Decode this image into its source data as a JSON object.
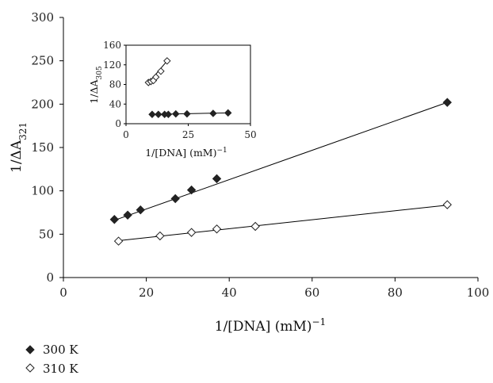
{
  "chart_data": [
    {
      "type": "scatter",
      "xlabel": "1/[DNA] (mM)",
      "xlabel_sup": "−1",
      "ylabel": "1/ΔA",
      "ylabel_sub": "321",
      "xlim": [
        0,
        100
      ],
      "ylim": [
        0,
        300
      ],
      "xticks": [
        "0",
        "20",
        "40",
        "60",
        "80",
        "100"
      ],
      "yticks": [
        "0",
        "50",
        "100",
        "150",
        "200",
        "250",
        "300"
      ],
      "grid": false,
      "legend_position": "bottom-left",
      "series": [
        {
          "name": "300 K",
          "marker": "filled-diamond",
          "x": [
            12.3,
            15.5,
            18.6,
            27.0,
            30.9,
            37.0,
            92.6
          ],
          "y": [
            67,
            72,
            78,
            91,
            101,
            114,
            202
          ],
          "trendline": [
            [
              12.3,
              66
            ],
            [
              92.6,
              202
            ]
          ]
        },
        {
          "name": "310 K",
          "marker": "open-diamond",
          "x": [
            13.3,
            23.3,
            30.9,
            37.0,
            46.3,
            92.6
          ],
          "y": [
            42,
            48,
            52,
            56,
            59,
            84
          ],
          "trendline": [
            [
              13.3,
              42.5
            ],
            [
              92.6,
              83.5
            ]
          ]
        }
      ]
    },
    {
      "type": "scatter",
      "placement": "inset",
      "xlabel": "1/[DNA] (mM)",
      "xlabel_sup": "−1",
      "ylabel": "1/ΔA",
      "ylabel_sub": "305",
      "xlim": [
        0,
        50
      ],
      "ylim": [
        0,
        160
      ],
      "xticks": [
        "0",
        "25",
        "50"
      ],
      "yticks": [
        "0",
        "40",
        "80",
        "120",
        "160"
      ],
      "series": [
        {
          "marker": "open-diamond",
          "x": [
            9.0,
            10.0,
            11.0,
            12.0,
            14.0,
            16.5
          ],
          "y": [
            84,
            86,
            88,
            95,
            107,
            128
          ],
          "trendline": [
            [
              8.5,
              80
            ],
            [
              16.5,
              128
            ]
          ]
        },
        {
          "marker": "filled-diamond",
          "x": [
            10.5,
            13.0,
            15.5,
            17.0,
            20.0,
            24.5,
            35.0,
            41.0
          ],
          "y": [
            19,
            19,
            19,
            19,
            20,
            20,
            21,
            22
          ],
          "trendline": [
            [
              10.5,
              19
            ],
            [
              41.0,
              22
            ]
          ]
        }
      ]
    }
  ]
}
